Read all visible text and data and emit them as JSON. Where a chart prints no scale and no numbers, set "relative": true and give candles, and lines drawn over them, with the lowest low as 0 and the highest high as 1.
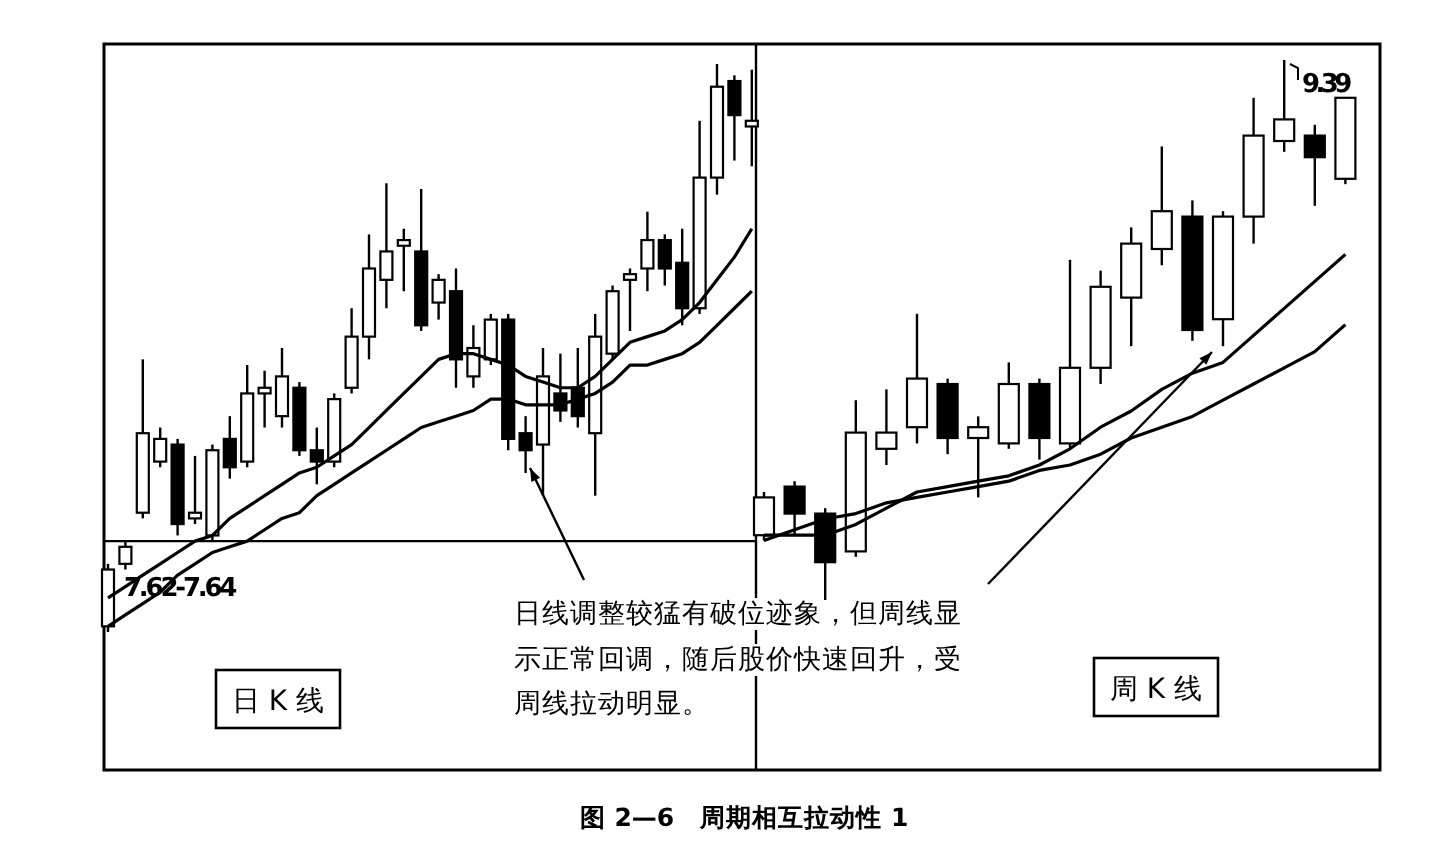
{
  "chart_data": [
    {
      "type": "candlestick",
      "relative": true,
      "categories": [
        null,
        null,
        null,
        null,
        null,
        null,
        null,
        null,
        null,
        null,
        null,
        null,
        null,
        null,
        null,
        null,
        null,
        null,
        null,
        null,
        null,
        null,
        null,
        null,
        null,
        null,
        null,
        null,
        null,
        null,
        null,
        null,
        null,
        null,
        null,
        null,
        null,
        null
      ],
      "ohlc": [
        [
          0.01,
          0.12,
          0,
          0.11
        ],
        [
          0.12,
          0.16,
          0.11,
          0.15
        ],
        [
          0.21,
          0.48,
          0.2,
          0.35
        ],
        [
          0.3,
          0.36,
          0.29,
          0.34
        ],
        [
          0.33,
          0.34,
          0.17,
          0.19
        ],
        [
          0.2,
          0.31,
          0.19,
          0.21
        ],
        [
          0.17,
          0.33,
          0.16,
          0.32
        ],
        [
          0.34,
          0.38,
          0.27,
          0.29
        ],
        [
          0.3,
          0.47,
          0.29,
          0.42
        ],
        [
          0.42,
          0.46,
          0.36,
          0.43
        ],
        [
          0.38,
          0.5,
          0.36,
          0.45
        ],
        [
          0.43,
          0.44,
          0.31,
          0.32
        ],
        [
          0.32,
          0.36,
          0.26,
          0.3
        ],
        [
          0.3,
          0.42,
          0.29,
          0.41
        ],
        [
          0.43,
          0.57,
          0.42,
          0.52
        ],
        [
          0.52,
          0.7,
          0.48,
          0.64
        ],
        [
          0.62,
          0.79,
          0.57,
          0.67
        ],
        [
          0.68,
          0.71,
          0.6,
          0.69
        ],
        [
          0.67,
          0.78,
          0.53,
          0.54
        ],
        [
          0.58,
          0.63,
          0.55,
          0.62
        ],
        [
          0.6,
          0.64,
          0.43,
          0.48
        ],
        [
          0.45,
          0.54,
          0.43,
          0.5
        ],
        [
          0.48,
          0.56,
          0.47,
          0.55
        ],
        [
          0.55,
          0.56,
          0.32,
          0.34
        ],
        [
          0.35,
          0.38,
          0.28,
          0.32
        ],
        [
          0.33,
          0.5,
          0.24,
          0.45
        ],
        [
          0.42,
          0.49,
          0.37,
          0.39
        ],
        [
          0.43,
          0.5,
          0.36,
          0.38
        ],
        [
          0.35,
          0.56,
          0.24,
          0.52
        ],
        [
          0.49,
          0.61,
          0.48,
          0.6
        ],
        [
          0.62,
          0.64,
          0.53,
          0.63
        ],
        [
          0.64,
          0.74,
          0.6,
          0.69
        ],
        [
          0.69,
          0.7,
          0.61,
          0.64
        ],
        [
          0.65,
          0.71,
          0.54,
          0.57
        ],
        [
          0.57,
          0.9,
          0.56,
          0.8
        ],
        [
          0.8,
          1.0,
          0.77,
          0.96
        ],
        [
          0.97,
          0.98,
          0.83,
          0.91
        ],
        [
          0.89,
          0.99,
          0.82,
          0.9
        ]
      ],
      "series": [
        {
          "type": "line",
          "color": "#000000",
          "values": [
            0.06,
            0.08,
            0.1,
            0.12,
            0.14,
            0.16,
            0.17,
            0.2,
            0.22,
            0.24,
            0.26,
            0.28,
            0.29,
            0.31,
            0.33,
            0.36,
            0.39,
            0.42,
            0.45,
            0.48,
            0.49,
            0.49,
            0.48,
            0.47,
            0.45,
            0.44,
            0.43,
            0.43,
            0.45,
            0.48,
            0.51,
            0.52,
            0.53,
            0.55,
            0.58,
            0.62,
            0.66,
            0.71
          ]
        },
        {
          "type": "line",
          "color": "#000000",
          "values": [
            0.01,
            0.03,
            0.05,
            0.07,
            0.1,
            0.12,
            0.14,
            0.15,
            0.16,
            0.18,
            0.2,
            0.21,
            0.24,
            0.26,
            0.28,
            0.3,
            0.32,
            0.34,
            0.36,
            0.37,
            0.38,
            0.39,
            0.41,
            0.41,
            0.4,
            0.4,
            0.4,
            0.41,
            0.42,
            0.44,
            0.47,
            0.47,
            0.48,
            0.49,
            0.51,
            0.54,
            0.57,
            0.6
          ]
        }
      ],
      "ref_lines": [
        {
          "axis": "y",
          "value": 0.16
        }
      ],
      "annotations": [
        "日 K 线",
        "7.62-7.64",
        "日线调整较猛有破位迹象，但周线显示正常回调，随后股价快速回升，受周线拉动明显。",
        "图 2—6　周期相互拉动性 1"
      ]
    },
    {
      "type": "candlestick",
      "relative": true,
      "categories": [
        null,
        null,
        null,
        null,
        null,
        null,
        null,
        null,
        null,
        null,
        null,
        null,
        null,
        null,
        null,
        null,
        null,
        null,
        null,
        null
      ],
      "ohlc": [
        [
          0.12,
          0.2,
          0.11,
          0.19
        ],
        [
          0.21,
          0.22,
          0.12,
          0.16
        ],
        [
          0.16,
          0.17,
          0,
          0.07
        ],
        [
          0.09,
          0.37,
          0.08,
          0.31
        ],
        [
          0.28,
          0.39,
          0.25,
          0.31
        ],
        [
          0.32,
          0.53,
          0.29,
          0.41
        ],
        [
          0.4,
          0.41,
          0.27,
          0.3
        ],
        [
          0.3,
          0.34,
          0.19,
          0.32
        ],
        [
          0.29,
          0.44,
          0.28,
          0.4
        ],
        [
          0.4,
          0.41,
          0.26,
          0.3
        ],
        [
          0.29,
          0.63,
          0.28,
          0.43
        ],
        [
          0.43,
          0.61,
          0.4,
          0.58
        ],
        [
          0.56,
          0.69,
          0.47,
          0.66
        ],
        [
          0.65,
          0.84,
          0.62,
          0.72
        ],
        [
          0.71,
          0.74,
          0.48,
          0.5
        ],
        [
          0.52,
          0.72,
          0.47,
          0.71
        ],
        [
          0.71,
          0.93,
          0.66,
          0.86
        ],
        [
          0.85,
          1.0,
          0.83,
          0.89
        ],
        [
          0.86,
          0.88,
          0.73,
          0.82
        ],
        [
          0.78,
          0.93,
          0.77,
          0.93
        ]
      ],
      "series": [
        {
          "type": "line",
          "color": "#000000",
          "values": [
            0.12,
            0.12,
            0.12,
            0.14,
            0.17,
            0.2,
            0.21,
            0.22,
            0.23,
            0.25,
            0.28,
            0.32,
            0.35,
            0.39,
            0.42,
            0.44,
            0.49,
            0.54,
            0.59,
            0.64
          ]
        },
        {
          "type": "line",
          "color": "#000000",
          "values": [
            0.11,
            0.13,
            0.15,
            0.16,
            0.18,
            0.19,
            0.2,
            0.21,
            0.22,
            0.24,
            0.25,
            0.27,
            0.3,
            0.32,
            0.34,
            0.37,
            0.4,
            0.43,
            0.46,
            0.51
          ]
        }
      ],
      "annotations": [
        "周 K 线",
        "9.39"
      ]
    }
  ]
}
